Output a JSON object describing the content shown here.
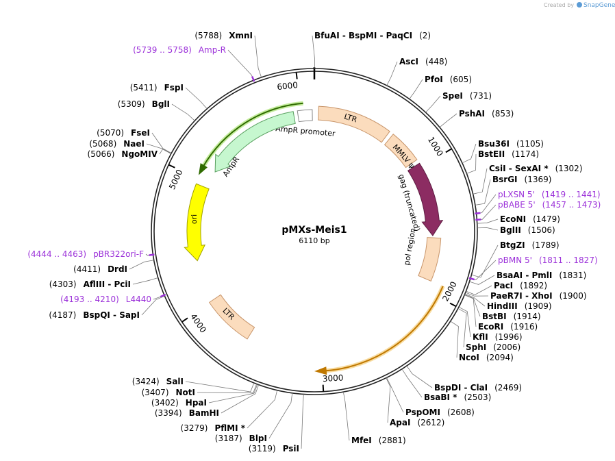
{
  "logo": {
    "prefix": "Created by",
    "brand": "SnapGene"
  },
  "plasmid": {
    "name": "pMXs-Meis1",
    "length": "6110 bp"
  },
  "ticks": [
    "1000",
    "2000",
    "3000",
    "4000",
    "5000",
    "6000"
  ],
  "features": [
    {
      "label": "LTR"
    },
    {
      "label": "MMLV ψ"
    },
    {
      "label": "gag (truncated)"
    },
    {
      "label": "pol region"
    },
    {
      "label": "AmpR promoter"
    },
    {
      "label": "AmpR"
    },
    {
      "label": "ori"
    },
    {
      "label": "LTR"
    }
  ],
  "sites": [
    {
      "name": "BfuAI  -  BspMI  -  PaqCI",
      "position": "(2)"
    },
    {
      "name": "AscI",
      "position": "(448)"
    },
    {
      "name": "PfoI",
      "position": "(605)"
    },
    {
      "name": "SpeI",
      "position": "(731)"
    },
    {
      "name": "PshAI",
      "position": "(853)"
    },
    {
      "name": "Bsu36I",
      "position": "(1105)"
    },
    {
      "name": "BstEII",
      "position": "(1174)"
    },
    {
      "name": "CsiI  -  SexAI *",
      "position": "(1302)"
    },
    {
      "name": "BsrGI",
      "position": "(1369)"
    },
    {
      "name": "EcoNI",
      "position": "(1479)"
    },
    {
      "name": "BglII",
      "position": "(1506)"
    },
    {
      "name": "BtgZI",
      "position": "(1789)"
    },
    {
      "name": "BsaAI  -  PmlI",
      "position": "(1831)"
    },
    {
      "name": "PacI",
      "position": "(1892)"
    },
    {
      "name": "PaeR7I  -  XhoI",
      "position": "(1900)"
    },
    {
      "name": "HindIII",
      "position": "(1909)"
    },
    {
      "name": "BstBI",
      "position": "(1914)"
    },
    {
      "name": "EcoRI",
      "position": "(1916)"
    },
    {
      "name": "KflI",
      "position": "(1996)"
    },
    {
      "name": "SphI",
      "position": "(2006)"
    },
    {
      "name": "NcoI",
      "position": "(2094)"
    },
    {
      "name": "BspDI  -  ClaI",
      "position": "(2469)"
    },
    {
      "name": "BsaBI *",
      "position": "(2503)"
    },
    {
      "name": "PspOMI",
      "position": "(2608)"
    },
    {
      "name": "ApaI",
      "position": "(2612)"
    },
    {
      "name": "MfeI",
      "position": "(2881)"
    },
    {
      "name": "PsiI",
      "position": "(3119)"
    },
    {
      "name": "BlpI",
      "position": "(3187)"
    },
    {
      "name": "PflMI *",
      "position": "(3279)"
    },
    {
      "name": "BamHI",
      "position": "(3394)"
    },
    {
      "name": "HpaI",
      "position": "(3402)"
    },
    {
      "name": "NotI",
      "position": "(3407)"
    },
    {
      "name": "SalI",
      "position": "(3424)"
    },
    {
      "name": "BspQI  -  SapI",
      "position": "(4187)"
    },
    {
      "name": "AflIII  -  PciI",
      "position": "(4303)"
    },
    {
      "name": "DrdI",
      "position": "(4411)"
    },
    {
      "name": "NgoMIV",
      "position": "(5066)"
    },
    {
      "name": "NaeI",
      "position": "(5068)"
    },
    {
      "name": "FseI",
      "position": "(5070)"
    },
    {
      "name": "BglI",
      "position": "(5309)"
    },
    {
      "name": "FspI",
      "position": "(5411)"
    },
    {
      "name": "XmnI",
      "position": "(5788)"
    }
  ],
  "primers": [
    {
      "name": "Amp-R",
      "position": "(5739 .. 5758)"
    },
    {
      "name": "pLXSN 5'",
      "position": "(1419 .. 1441)"
    },
    {
      "name": "pBABE 5'",
      "position": "(1457 .. 1473)"
    },
    {
      "name": "pBMN 5'",
      "position": "(1811 .. 1827)"
    },
    {
      "name": "pBR322ori-F",
      "position": "(4444 .. 4463)"
    },
    {
      "name": "L4440",
      "position": "(4193 .. 4210)"
    }
  ]
}
